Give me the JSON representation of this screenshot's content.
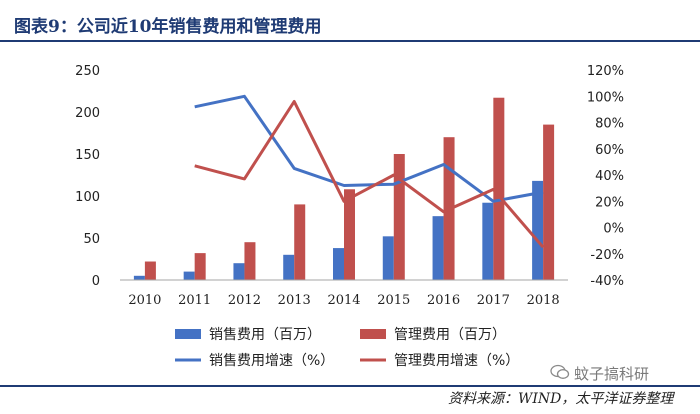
{
  "caption": "图表9：公司近10年销售费用和管理费用",
  "source": "资料来源：WIND，太平洋证券整理",
  "watermark": "蚊子搞科研",
  "colors": {
    "blue": "#4472c4",
    "red": "#c0504d",
    "brand": "#1f3b74"
  },
  "chart_data": {
    "type": "bar",
    "categories": [
      "2010",
      "2011",
      "2012",
      "2013",
      "2014",
      "2015",
      "2016",
      "2017",
      "2018"
    ],
    "series": [
      {
        "name": "销售费用（百万）",
        "kind": "bar",
        "axis": "left",
        "color": "#4472c4",
        "values": [
          5,
          10,
          20,
          30,
          38,
          52,
          76,
          92,
          118
        ]
      },
      {
        "name": "管理费用（百万）",
        "kind": "bar",
        "axis": "left",
        "color": "#c0504d",
        "values": [
          22,
          32,
          45,
          90,
          108,
          150,
          170,
          217,
          185
        ]
      },
      {
        "name": "销售费用增速（%）",
        "kind": "line",
        "axis": "right",
        "color": "#4472c4",
        "values": [
          null,
          92,
          100,
          45,
          32,
          33,
          48,
          20,
          27
        ]
      },
      {
        "name": "管理费用增速（%）",
        "kind": "line",
        "axis": "right",
        "color": "#c0504d",
        "values": [
          null,
          47,
          37,
          96,
          20,
          40,
          12,
          29,
          -15
        ]
      }
    ],
    "y_left": {
      "min": 0,
      "max": 250,
      "ticks": [
        "0",
        "50",
        "100",
        "150",
        "200",
        "250"
      ]
    },
    "y_right": {
      "min": -40,
      "max": 120,
      "ticks": [
        "-40%",
        "-20%",
        "0%",
        "20%",
        "40%",
        "60%",
        "80%",
        "100%",
        "120%"
      ]
    },
    "legend_position": "bottom",
    "grid": false
  }
}
